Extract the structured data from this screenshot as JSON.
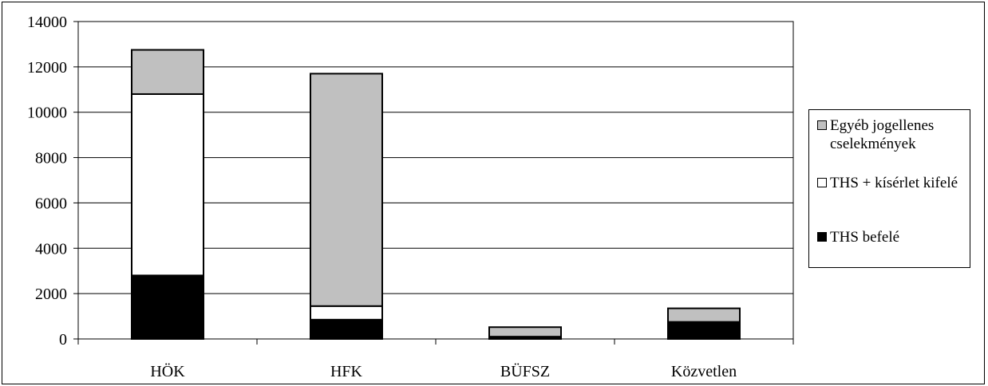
{
  "chart_data": {
    "type": "bar",
    "stacked": true,
    "categories": [
      "HÖK",
      "HFK",
      "BÜFSZ",
      "Közvetlen"
    ],
    "series": [
      {
        "name": "THS befelé",
        "values": [
          2800,
          850,
          100,
          750
        ],
        "color": "#000000"
      },
      {
        "name": "THS + kísérlet kifelé",
        "values": [
          8000,
          600,
          0,
          0
        ],
        "color": "#ffffff"
      },
      {
        "name": "Egyéb jogellenes cselekmények",
        "values": [
          1950,
          10250,
          420,
          600
        ],
        "color": "#c0c0c0"
      }
    ],
    "yticks": [
      "0",
      "2000",
      "4000",
      "6000",
      "8000",
      "10000",
      "12000",
      "14000"
    ],
    "ylim": [
      0,
      14000
    ],
    "grid": true,
    "legend_position": "right"
  },
  "legend": {
    "items": [
      {
        "label": "Egyéb jogellenes cselekmények",
        "color": "#c0c0c0"
      },
      {
        "label": "THS + kísérlet kifelé",
        "color": "#ffffff"
      },
      {
        "label": "THS befelé",
        "color": "#000000"
      }
    ]
  }
}
